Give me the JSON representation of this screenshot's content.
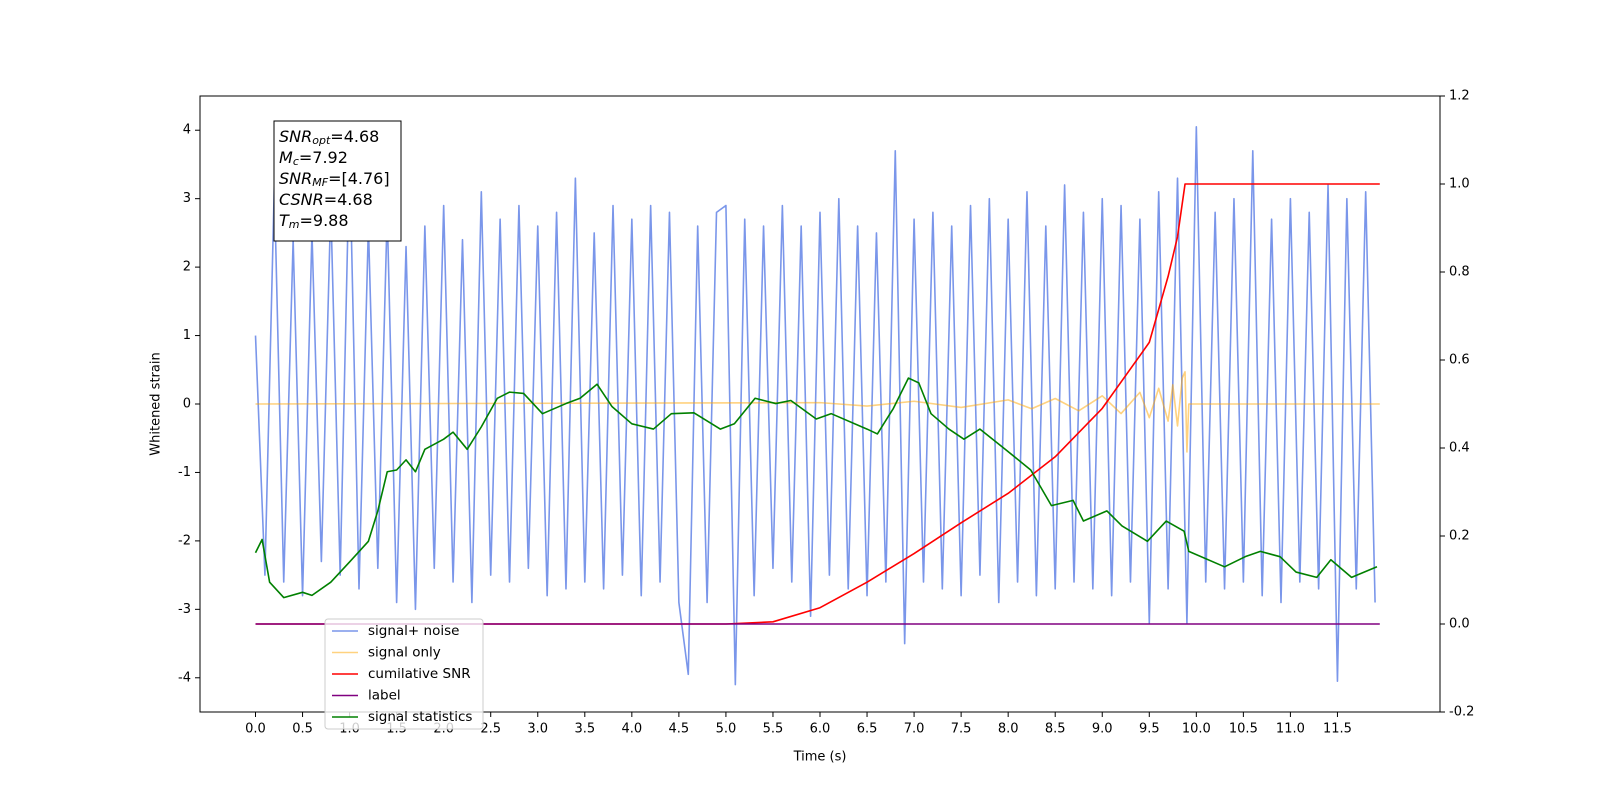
{
  "chart_data": {
    "type": "line",
    "xlabel": "Time (s)",
    "ylabel": "Whitened strain",
    "xlim": [
      -0.59,
      12.59
    ],
    "ylim": [
      -4.5,
      4.5
    ],
    "y2lim": [
      -0.2,
      1.2
    ],
    "xticks": [
      {
        "value": 0,
        "label": "0.0"
      },
      0.5,
      {
        "value": 1,
        "label": "1.0"
      },
      1.5,
      {
        "value": 2,
        "label": "2.0"
      },
      2.5,
      {
        "value": 3,
        "label": "3.0"
      },
      3.5,
      {
        "value": 4,
        "label": "4.0"
      },
      4.5,
      {
        "value": 5,
        "label": "5.0"
      },
      5.5,
      {
        "value": 6,
        "label": "6.0"
      },
      6.5,
      {
        "value": 7,
        "label": "7.0"
      },
      7.5,
      {
        "value": 8,
        "label": "8.0"
      },
      8.5,
      {
        "value": 9,
        "label": "9.0"
      },
      9.5,
      {
        "value": 10,
        "label": "10.0"
      },
      10.5,
      {
        "value": 11,
        "label": "11.0"
      },
      11.5
    ],
    "yticks": [
      -4,
      -3,
      -2,
      -1,
      0,
      1,
      2,
      3,
      4
    ],
    "y2ticks": [
      -0.2,
      {
        "value": 0,
        "label": "0.0"
      },
      0.2,
      0.4,
      0.6,
      0.8,
      {
        "value": 1,
        "label": "1.0"
      },
      1.2
    ],
    "legend_loc": "lower left",
    "annotation": [
      {
        "text": "SNR",
        "sub": "opt",
        "tail": "=4.68"
      },
      {
        "text": "M",
        "sub": "c",
        "tail": "=7.92"
      },
      {
        "text": "SNR",
        "sub": "MF",
        "tail": "=[4.76]"
      },
      {
        "text": "CSNR",
        "tail": "=4.68"
      },
      {
        "text": "T",
        "sub": "m",
        "tail": "=9.88"
      }
    ],
    "series": [
      {
        "name": "signal+ noise",
        "color": "#4169e1",
        "alpha": 0.7,
        "x": [
          0,
          0.1,
          0.2,
          0.3,
          0.4,
          0.5,
          0.6,
          0.7,
          0.8,
          0.9,
          1,
          1.1,
          1.2,
          1.3,
          1.4,
          1.5,
          1.6,
          1.7,
          1.8,
          1.9,
          2,
          2.1,
          2.2,
          2.3,
          2.4,
          2.5,
          2.6,
          2.7,
          2.8,
          2.9,
          3,
          3.1,
          3.2,
          3.3,
          3.4,
          3.5,
          3.6,
          3.7,
          3.8,
          3.9,
          4,
          4.1,
          4.2,
          4.3,
          4.4,
          4.5,
          4.6,
          4.7,
          4.8,
          4.9,
          5,
          5.1,
          5.2,
          5.3,
          5.4,
          5.5,
          5.6,
          5.7,
          5.8,
          5.9,
          6,
          6.1,
          6.2,
          6.3,
          6.4,
          6.5,
          6.6,
          6.7,
          6.8,
          6.9,
          7,
          7.1,
          7.2,
          7.3,
          7.4,
          7.5,
          7.6,
          7.7,
          7.8,
          7.9,
          8,
          8.1,
          8.2,
          8.3,
          8.4,
          8.5,
          8.6,
          8.7,
          8.8,
          8.9,
          9,
          9.1,
          9.2,
          9.3,
          9.4,
          9.5,
          9.6,
          9.7,
          9.8,
          9.9,
          10,
          10.1,
          10.2,
          10.3,
          10.4,
          10.5,
          10.6,
          10.7,
          10.8,
          10.9,
          11,
          11.1,
          11.2,
          11.3,
          11.4,
          11.5,
          11.6,
          11.7,
          11.8,
          11.9
        ],
        "values": [
          1.0,
          -2.5,
          3.2,
          -2.6,
          2.4,
          -2.8,
          2.5,
          -2.3,
          2.9,
          -2.5,
          3.7,
          -2.7,
          2.6,
          -2.4,
          2.8,
          -2.9,
          2.3,
          -3.0,
          2.6,
          -2.4,
          2.9,
          -2.6,
          2.4,
          -2.9,
          3.1,
          -2.5,
          2.7,
          -2.6,
          2.9,
          -2.4,
          2.6,
          -2.8,
          2.8,
          -2.7,
          3.3,
          -2.6,
          2.5,
          -2.7,
          2.9,
          -2.5,
          2.7,
          -2.8,
          2.9,
          -2.6,
          2.8,
          -2.9,
          -3.95,
          2.6,
          -2.9,
          2.8,
          2.9,
          -4.1,
          2.7,
          -2.8,
          2.6,
          -2.4,
          2.9,
          -2.6,
          2.6,
          -3.1,
          2.8,
          -2.5,
          3.0,
          -2.7,
          2.6,
          -2.8,
          2.5,
          -2.6,
          3.7,
          -3.5,
          2.7,
          -2.6,
          2.8,
          -2.7,
          2.6,
          -2.8,
          2.9,
          -2.5,
          3.0,
          -2.9,
          2.7,
          -2.6,
          3.1,
          -2.8,
          2.6,
          -2.7,
          3.2,
          -2.6,
          2.8,
          -2.7,
          3.0,
          -2.8,
          2.9,
          -2.6,
          2.7,
          -3.2,
          3.1,
          -2.7,
          3.3,
          -3.2,
          4.05,
          -2.6,
          2.8,
          -2.7,
          3.0,
          -2.6,
          3.7,
          -2.8,
          2.7,
          -2.9,
          3.0,
          -2.6,
          2.8,
          -2.7,
          3.2,
          -4.05,
          3.0,
          -2.7,
          3.1,
          -2.9
        ]
      },
      {
        "name": "signal only",
        "color": "#ffa500",
        "alpha": 0.5,
        "x": [
          0,
          6,
          6.5,
          7,
          7.5,
          8,
          8.25,
          8.5,
          8.75,
          9,
          9.2,
          9.4,
          9.5,
          9.6,
          9.7,
          9.75,
          9.8,
          9.85,
          9.88,
          9.9,
          9.92,
          11.95
        ],
        "values": [
          0,
          0.02,
          -0.03,
          0.04,
          -0.05,
          0.06,
          -0.07,
          0.08,
          -0.1,
          0.12,
          -0.14,
          0.17,
          -0.2,
          0.23,
          -0.25,
          0.28,
          -0.32,
          0.38,
          0.47,
          -0.7,
          0,
          0
        ]
      },
      {
        "name": "cumilative SNR",
        "color": "#ff0000",
        "axis": "y2",
        "x": [
          0,
          5,
          5.5,
          6,
          6.5,
          7,
          7.5,
          8,
          8.5,
          9,
          9.5,
          9.7,
          9.8,
          9.88,
          11.95
        ],
        "values": [
          0,
          0,
          0.005,
          0.037,
          0.095,
          0.16,
          0.23,
          0.297,
          0.38,
          0.49,
          0.64,
          0.79,
          0.88,
          1.0,
          1.0
        ]
      },
      {
        "name": "label",
        "color": "#800080",
        "axis": "y2",
        "x": [
          0,
          11.95
        ],
        "values": [
          0,
          0
        ]
      },
      {
        "name": "signal statistics",
        "color": "#008000",
        "axis": "y2",
        "x": [
          0,
          0.07,
          0.15,
          0.3,
          0.5,
          0.6,
          0.8,
          1.0,
          1.2,
          1.3,
          1.4,
          1.5,
          1.6,
          1.7,
          1.8,
          2.0,
          2.1,
          2.25,
          2.4,
          2.57,
          2.7,
          2.85,
          3.05,
          3.3,
          3.45,
          3.63,
          3.79,
          4.0,
          4.23,
          4.42,
          4.66,
          4.94,
          5.09,
          5.31,
          5.53,
          5.69,
          5.96,
          6.12,
          6.5,
          6.61,
          6.78,
          6.94,
          7.05,
          7.18,
          7.37,
          7.53,
          7.7,
          7.97,
          8.24,
          8.46,
          8.69,
          8.8,
          9.05,
          9.21,
          9.48,
          9.68,
          9.87,
          9.92,
          10.3,
          10.52,
          10.68,
          10.89,
          11.06,
          11.28,
          11.43,
          11.65,
          11.92
        ],
        "values": [
          0.162,
          0.192,
          0.095,
          0.06,
          0.072,
          0.065,
          0.095,
          0.141,
          0.188,
          0.257,
          0.346,
          0.35,
          0.373,
          0.346,
          0.397,
          0.42,
          0.436,
          0.397,
          0.448,
          0.513,
          0.527,
          0.524,
          0.478,
          0.501,
          0.513,
          0.545,
          0.494,
          0.455,
          0.443,
          0.478,
          0.48,
          0.443,
          0.455,
          0.513,
          0.501,
          0.508,
          0.466,
          0.478,
          0.443,
          0.432,
          0.49,
          0.559,
          0.548,
          0.478,
          0.443,
          0.42,
          0.443,
          0.397,
          0.35,
          0.269,
          0.281,
          0.234,
          0.257,
          0.223,
          0.188,
          0.234,
          0.211,
          0.165,
          0.13,
          0.153,
          0.165,
          0.153,
          0.118,
          0.106,
          0.146,
          0.106,
          0.13
        ]
      }
    ]
  }
}
